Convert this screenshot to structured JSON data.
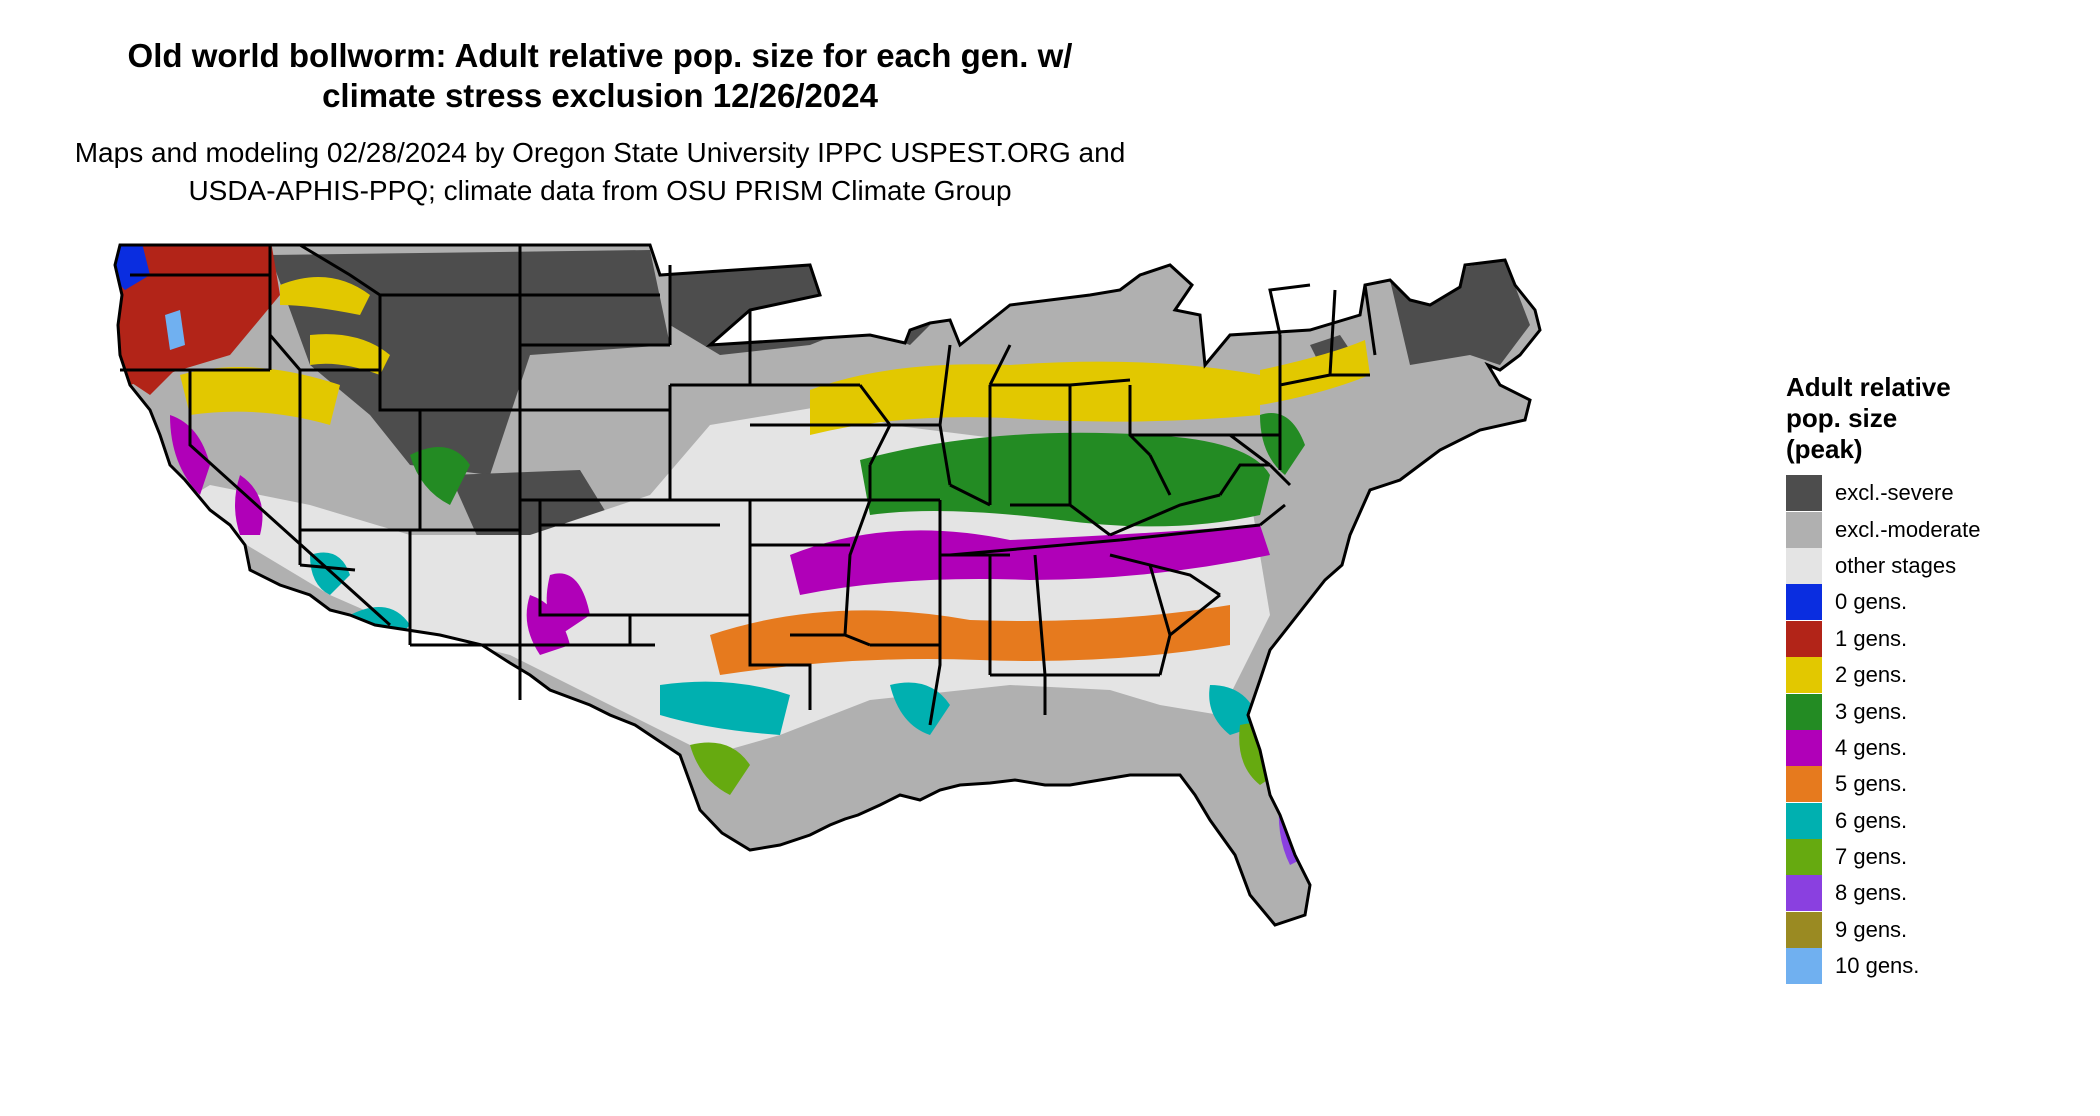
{
  "title": {
    "line1": "Old world bollworm: Adult relative pop. size for each gen. w/",
    "line2": "climate stress exclusion 12/26/2024"
  },
  "subtitle": {
    "line1": "Maps and modeling 02/28/2024 by Oregon State University IPPC USPEST.ORG and",
    "line2": "USDA-APHIS-PPQ; climate data from OSU PRISM Climate Group"
  },
  "legend": {
    "title_line1": "Adult relative",
    "title_line2": "pop. size",
    "title_line3": "(peak)",
    "items": [
      {
        "label": "excl.-severe",
        "color": "#4d4d4d"
      },
      {
        "label": "excl.-moderate",
        "color": "#b0b0b0"
      },
      {
        "label": "other stages",
        "color": "#e4e4e4"
      },
      {
        "label": "0 gens.",
        "color": "#0a2de0"
      },
      {
        "label": "1 gens.",
        "color": "#b22418"
      },
      {
        "label": "2 gens.",
        "color": "#e2c800"
      },
      {
        "label": "3 gens.",
        "color": "#238b23"
      },
      {
        "label": "4 gens.",
        "color": "#b000b8"
      },
      {
        "label": "5 gens.",
        "color": "#e67a1e"
      },
      {
        "label": "6 gens.",
        "color": "#00b0b0"
      },
      {
        "label": "7 gens.",
        "color": "#66aa10"
      },
      {
        "label": "8 gens.",
        "color": "#8a40e0"
      },
      {
        "label": "9 gens.",
        "color": "#9a8a22"
      },
      {
        "label": "10 gens.",
        "color": "#70b0f0"
      }
    ]
  }
}
